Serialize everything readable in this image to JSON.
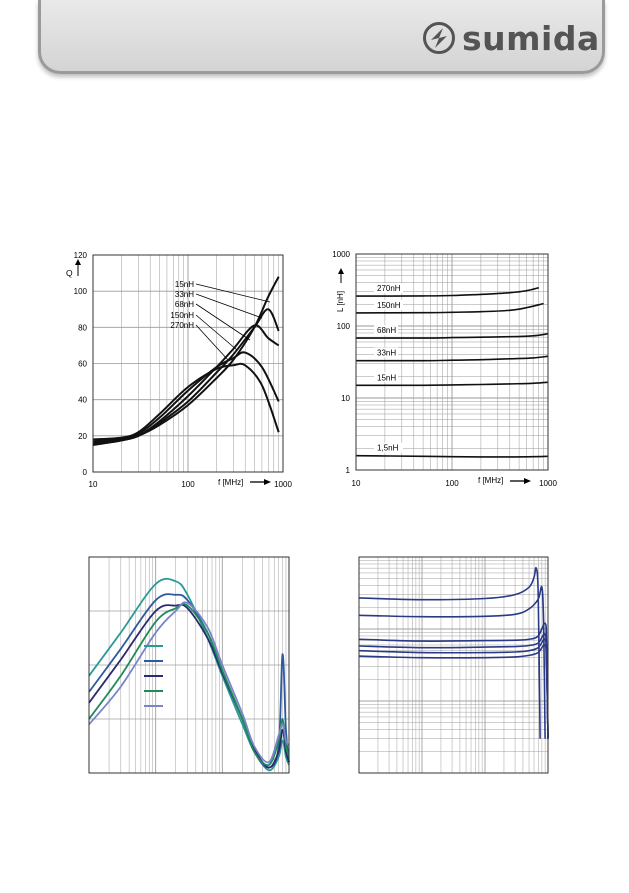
{
  "brand": {
    "logo_text": "sumida",
    "logo_icon": "sumida-logo-icon",
    "colors": {
      "header_bg": "#dcdcdc",
      "header_border": "#9a9a9a",
      "logo": "#545454"
    }
  },
  "chart_data": [
    {
      "type": "line",
      "xscale": "log",
      "xlim": [
        10,
        1000
      ],
      "ylim": [
        0,
        120
      ],
      "ylabel": "Q",
      "xlabel": "f [MHz]",
      "xticks": [
        "10",
        "100",
        "1000"
      ],
      "yticks": [
        "0",
        "20",
        "40",
        "60",
        "80",
        "100",
        "120"
      ],
      "grid": true,
      "annotations": [
        "15nH",
        "33nH",
        "68nH",
        "150nH",
        "270nH"
      ],
      "series": [
        {
          "name": "15nH",
          "x": [
            10,
            20,
            30,
            50,
            100,
            200,
            300,
            500,
            700,
            900
          ],
          "y": [
            15,
            17.5,
            20,
            26,
            37,
            52,
            62,
            80,
            97,
            108
          ]
        },
        {
          "name": "33nH",
          "x": [
            10,
            20,
            30,
            50,
            100,
            200,
            300,
            500,
            700,
            900
          ],
          "y": [
            15,
            17.5,
            20,
            27,
            39,
            55,
            65,
            80,
            90,
            78
          ]
        },
        {
          "name": "68nH",
          "x": [
            10,
            20,
            30,
            50,
            100,
            200,
            300,
            500,
            700,
            900
          ],
          "y": [
            16,
            18,
            20,
            28,
            42,
            58,
            68,
            81,
            74,
            70
          ]
        },
        {
          "name": "150nH",
          "x": [
            10,
            20,
            30,
            50,
            100,
            200,
            300,
            400,
            600,
            900
          ],
          "y": [
            17,
            18.5,
            21,
            30,
            45,
            58,
            63,
            66,
            58,
            39
          ]
        },
        {
          "name": "270nH",
          "x": [
            10,
            20,
            30,
            50,
            100,
            200,
            300,
            400,
            600,
            900
          ],
          "y": [
            18,
            19,
            22,
            32,
            47,
            57,
            59,
            59,
            48,
            22
          ]
        }
      ]
    },
    {
      "type": "line",
      "xscale": "log",
      "yscale": "log",
      "xlim": [
        10,
        1000
      ],
      "ylim": [
        1,
        1000
      ],
      "ylabel": "L [nH]",
      "xlabel": "f [MHz]",
      "xticks": [
        "10",
        "100",
        "1000"
      ],
      "yticks": [
        "1",
        "10",
        "100",
        "1000"
      ],
      "grid": true,
      "series": [
        {
          "name": "270nH",
          "x": [
            10,
            50,
            100,
            200,
            400,
            600,
            800
          ],
          "y": [
            260,
            262,
            265,
            275,
            290,
            310,
            340
          ]
        },
        {
          "name": "150nH",
          "x": [
            10,
            50,
            100,
            200,
            400,
            600,
            900
          ],
          "y": [
            152,
            153,
            155,
            158,
            165,
            180,
            205
          ]
        },
        {
          "name": "68nH",
          "x": [
            10,
            50,
            100,
            200,
            400,
            700,
            1000
          ],
          "y": [
            68,
            68,
            69,
            70,
            71,
            73,
            78
          ]
        },
        {
          "name": "33nH",
          "x": [
            10,
            50,
            100,
            200,
            400,
            700,
            1000
          ],
          "y": [
            33,
            33,
            33.5,
            34,
            35,
            36,
            38
          ]
        },
        {
          "name": "15nH",
          "x": [
            10,
            50,
            100,
            200,
            400,
            700,
            1000
          ],
          "y": [
            15,
            15,
            15.2,
            15.4,
            15.7,
            16,
            16.5
          ]
        },
        {
          "name": "1,5nH",
          "x": [
            10,
            50,
            100,
            200,
            400,
            700,
            1000
          ],
          "y": [
            1.58,
            1.55,
            1.53,
            1.52,
            1.52,
            1.53,
            1.55
          ]
        }
      ]
    },
    {
      "type": "line",
      "xscale": "log",
      "xlim": [
        1,
        1000
      ],
      "ylim": [
        0,
        4
      ],
      "grid": true,
      "legend": "center",
      "series": [
        {
          "color": "#2a9a98",
          "x": [
            1,
            3,
            10,
            20,
            30,
            60,
            100,
            200,
            300,
            500,
            700,
            800,
            900,
            1000
          ],
          "y": [
            1.8,
            2.6,
            3.5,
            3.55,
            3.3,
            2.5,
            1.8,
            0.9,
            0.4,
            0.05,
            0.3,
            0.6,
            0.3,
            0.15
          ]
        },
        {
          "color": "#2e5a9e",
          "x": [
            1,
            3,
            10,
            20,
            30,
            60,
            100,
            200,
            300,
            500,
            700,
            800,
            900,
            1000
          ],
          "y": [
            1.5,
            2.3,
            3.2,
            3.3,
            3.2,
            2.6,
            1.9,
            1.0,
            0.4,
            0.1,
            0.5,
            2.2,
            0.8,
            0.2
          ]
        },
        {
          "color": "#2a2a6e",
          "x": [
            1,
            3,
            10,
            20,
            30,
            60,
            100,
            200,
            300,
            500,
            700,
            800,
            900,
            1000
          ],
          "y": [
            1.3,
            2.1,
            3.0,
            3.1,
            3.05,
            2.5,
            1.85,
            1.0,
            0.45,
            0.1,
            0.4,
            0.8,
            0.4,
            0.2
          ]
        },
        {
          "color": "#1f8a5a",
          "x": [
            1,
            3,
            10,
            20,
            30,
            60,
            100,
            200,
            300,
            500,
            700,
            800,
            900,
            1000
          ],
          "y": [
            1.0,
            1.8,
            2.8,
            3.05,
            3.1,
            2.6,
            1.9,
            1.0,
            0.4,
            0.15,
            0.6,
            1.0,
            0.5,
            0.3
          ]
        },
        {
          "color": "#7a85c8",
          "x": [
            1,
            3,
            10,
            20,
            30,
            60,
            100,
            200,
            300,
            500,
            700,
            800,
            900,
            1000
          ],
          "y": [
            0.9,
            1.6,
            2.6,
            3.0,
            3.15,
            2.7,
            2.0,
            1.1,
            0.5,
            0.2,
            0.7,
            0.9,
            0.6,
            0.5
          ]
        }
      ]
    },
    {
      "type": "line",
      "xscale": "log",
      "yscale": "log",
      "xlim": [
        1,
        1000
      ],
      "ylim": [
        1,
        1000
      ],
      "grid": true,
      "series": [
        {
          "color": "#2b3a86",
          "x": [
            1,
            10,
            100,
            300,
            500,
            600,
            650,
            700,
            750
          ],
          "y": [
            270,
            255,
            265,
            300,
            380,
            520,
            700,
            300,
            3
          ]
        },
        {
          "color": "#2b3a86",
          "x": [
            1,
            10,
            100,
            300,
            500,
            700,
            800,
            850,
            900
          ],
          "y": [
            155,
            148,
            150,
            160,
            190,
            260,
            380,
            120,
            3
          ]
        },
        {
          "color": "#2b3a86",
          "x": [
            1,
            10,
            100,
            300,
            500,
            700,
            900,
            950,
            1000
          ],
          "y": [
            72,
            68,
            69,
            70,
            72,
            80,
            120,
            60,
            3
          ]
        },
        {
          "color": "#2b3a86",
          "x": [
            1,
            10,
            100,
            300,
            500,
            700,
            900,
            950,
            1000
          ],
          "y": [
            58,
            55,
            56,
            57,
            59,
            64,
            85,
            40,
            3
          ]
        },
        {
          "color": "#2b3a86",
          "x": [
            1,
            10,
            100,
            300,
            500,
            700,
            900,
            950,
            1000
          ],
          "y": [
            50,
            47,
            47,
            48,
            50,
            55,
            72,
            35,
            3
          ]
        },
        {
          "color": "#2b3a86",
          "x": [
            1,
            10,
            100,
            300,
            500,
            700,
            900,
            950,
            1000
          ],
          "y": [
            42,
            40,
            40,
            41,
            43,
            47,
            60,
            30,
            3
          ]
        }
      ]
    }
  ]
}
